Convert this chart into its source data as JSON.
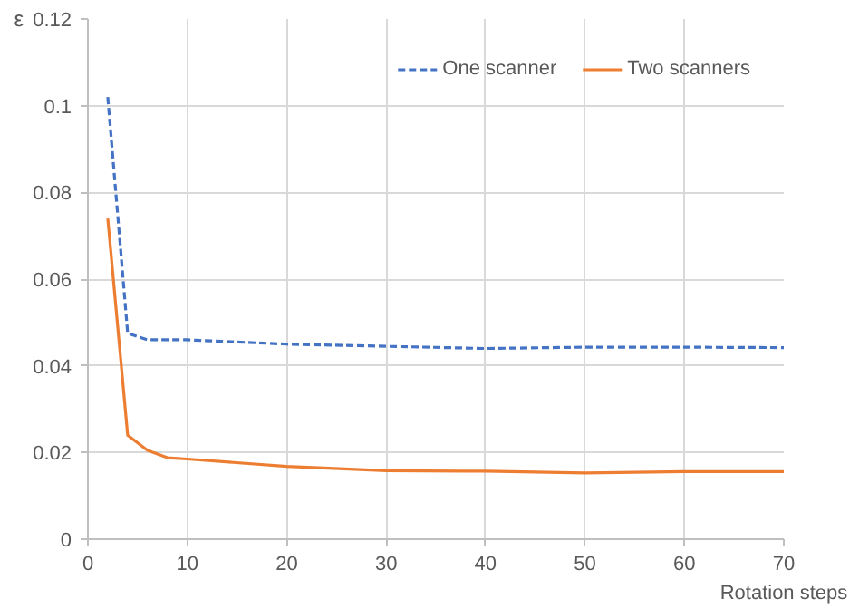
{
  "chart_data": {
    "type": "line",
    "xlabel": "Rotation steps",
    "ylabel": "ε",
    "x": [
      2,
      4,
      6,
      8,
      10,
      20,
      30,
      40,
      50,
      60,
      70
    ],
    "series": [
      {
        "name": "One scanner",
        "color": "#4472c4",
        "line_style": "dashed",
        "values": [
          0.102,
          0.0475,
          0.046,
          0.046,
          0.046,
          0.045,
          0.0445,
          0.044,
          0.0443,
          0.0443,
          0.0442
        ]
      },
      {
        "name": "Two scanners",
        "color": "#ed7d31",
        "line_style": "solid",
        "values": [
          0.074,
          0.024,
          0.0205,
          0.0188,
          0.0185,
          0.0168,
          0.0158,
          0.0157,
          0.0153,
          0.0156,
          0.0156
        ]
      }
    ],
    "xlim": [
      0,
      70
    ],
    "xticks": [
      0,
      10,
      20,
      30,
      40,
      50,
      60,
      70
    ],
    "ylim": [
      0,
      0.12
    ],
    "yticks": [
      0,
      0.02,
      0.04,
      0.06,
      0.08,
      0.1,
      0.12
    ],
    "grid": true,
    "legend": "top right",
    "marker": "none"
  }
}
